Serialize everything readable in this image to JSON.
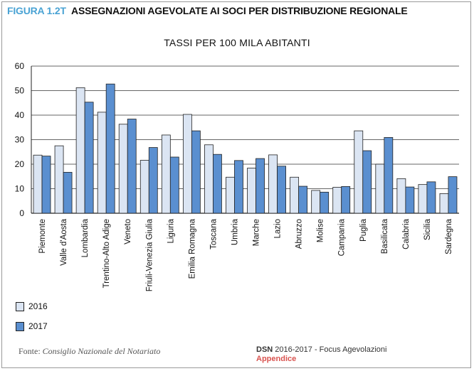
{
  "figure": {
    "label": "FIGURA 1.2T",
    "title": "ASSEGNAZIONI AGEVOLATE AI SOCI PER DISTRIBUZIONE REGIONALE"
  },
  "colors": {
    "series_2016": "#dbe5f3",
    "series_2017": "#5a8fd0",
    "label_accent": "#4aa3d4",
    "appendix_red": "#d9534f"
  },
  "chart_data": {
    "type": "bar",
    "title": "TASSI PER 100 MILA ABITANTI",
    "xlabel": "",
    "ylabel": "",
    "ylim": [
      0,
      60
    ],
    "yticks": [
      0,
      10,
      20,
      30,
      40,
      50,
      60
    ],
    "grid": true,
    "legend_position": "bottom-left",
    "categories": [
      "Piemonte",
      "Valle d'Aosta",
      "Lombardia",
      "Trentino-Alto Adige",
      "Veneto",
      "Friuli-Venezia Giulia",
      "Liguria",
      "Emilia Romagna",
      "Toscana",
      "Umbria",
      "Marche",
      "Lazio",
      "Abruzzo",
      "Molise",
      "Campania",
      "Puglia",
      "Basilicata",
      "Calabria",
      "Sicilia",
      "Sardegna"
    ],
    "series": [
      {
        "name": "2016",
        "values": [
          23.7,
          27.5,
          51.2,
          41.2,
          36.3,
          21.6,
          31.9,
          40.3,
          27.9,
          14.7,
          18.4,
          23.8,
          14.7,
          9.3,
          10.6,
          33.6,
          20.0,
          14.1,
          11.7,
          8.0
        ]
      },
      {
        "name": "2017",
        "values": [
          23.3,
          16.7,
          45.3,
          52.7,
          38.4,
          26.8,
          22.9,
          33.6,
          24.0,
          21.5,
          22.3,
          19.2,
          11.0,
          8.6,
          10.9,
          25.5,
          30.9,
          10.7,
          12.8,
          14.9
        ]
      }
    ]
  },
  "source": {
    "prefix": "Fonte:",
    "name": "Consiglio Nazionale del Notariato"
  },
  "publication": {
    "brand": "DSN",
    "text": "2016-2017 - Focus Agevolazioni",
    "section": "Appendice"
  }
}
